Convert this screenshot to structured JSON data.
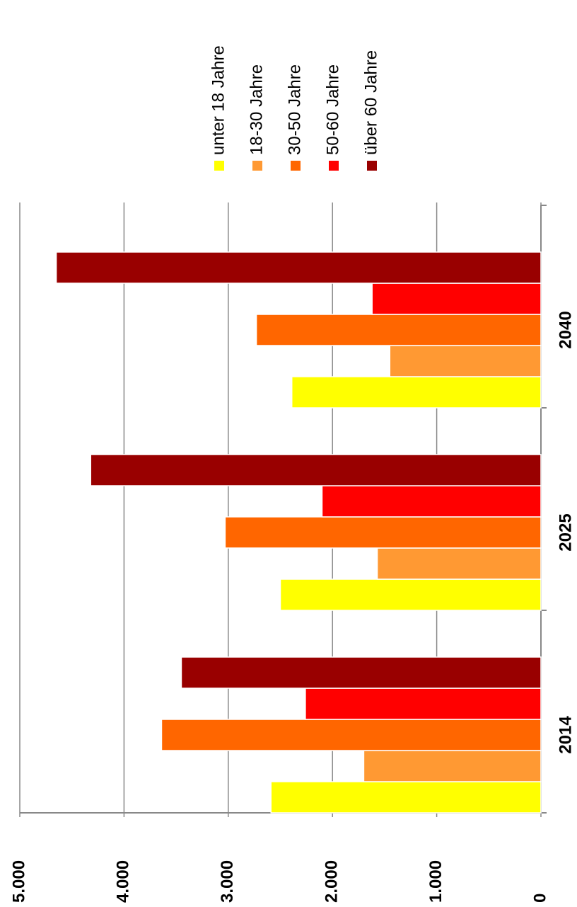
{
  "chart_data": {
    "type": "bar",
    "rotated": true,
    "categories": [
      "2014",
      "2025",
      "2040"
    ],
    "series": [
      {
        "name": "unter 18 Jahre",
        "color": "#ffff00",
        "values": [
          2590,
          2500,
          2390
        ]
      },
      {
        "name": "18-30 Jahre",
        "color": "#ff9933",
        "values": [
          1700,
          1570,
          1450
        ]
      },
      {
        "name": "30-50 Jahre",
        "color": "#ff6600",
        "values": [
          3640,
          3030,
          2730
        ]
      },
      {
        "name": "50-60 Jahre",
        "color": "#ff0000",
        "values": [
          2260,
          2100,
          1620
        ]
      },
      {
        "name": "über 60 Jahre",
        "color": "#990000",
        "values": [
          3450,
          4320,
          4650
        ]
      }
    ],
    "ylim": [
      0,
      5000
    ],
    "yticks": [
      0,
      {
        "value": 1000,
        "label": "1.000"
      },
      {
        "value": 2000,
        "label": "2.000"
      },
      {
        "value": 3000,
        "label": "3.000"
      },
      {
        "value": 4000,
        "label": "4.000"
      },
      {
        "value": 5000,
        "label": "5.000"
      }
    ],
    "grid": true
  }
}
